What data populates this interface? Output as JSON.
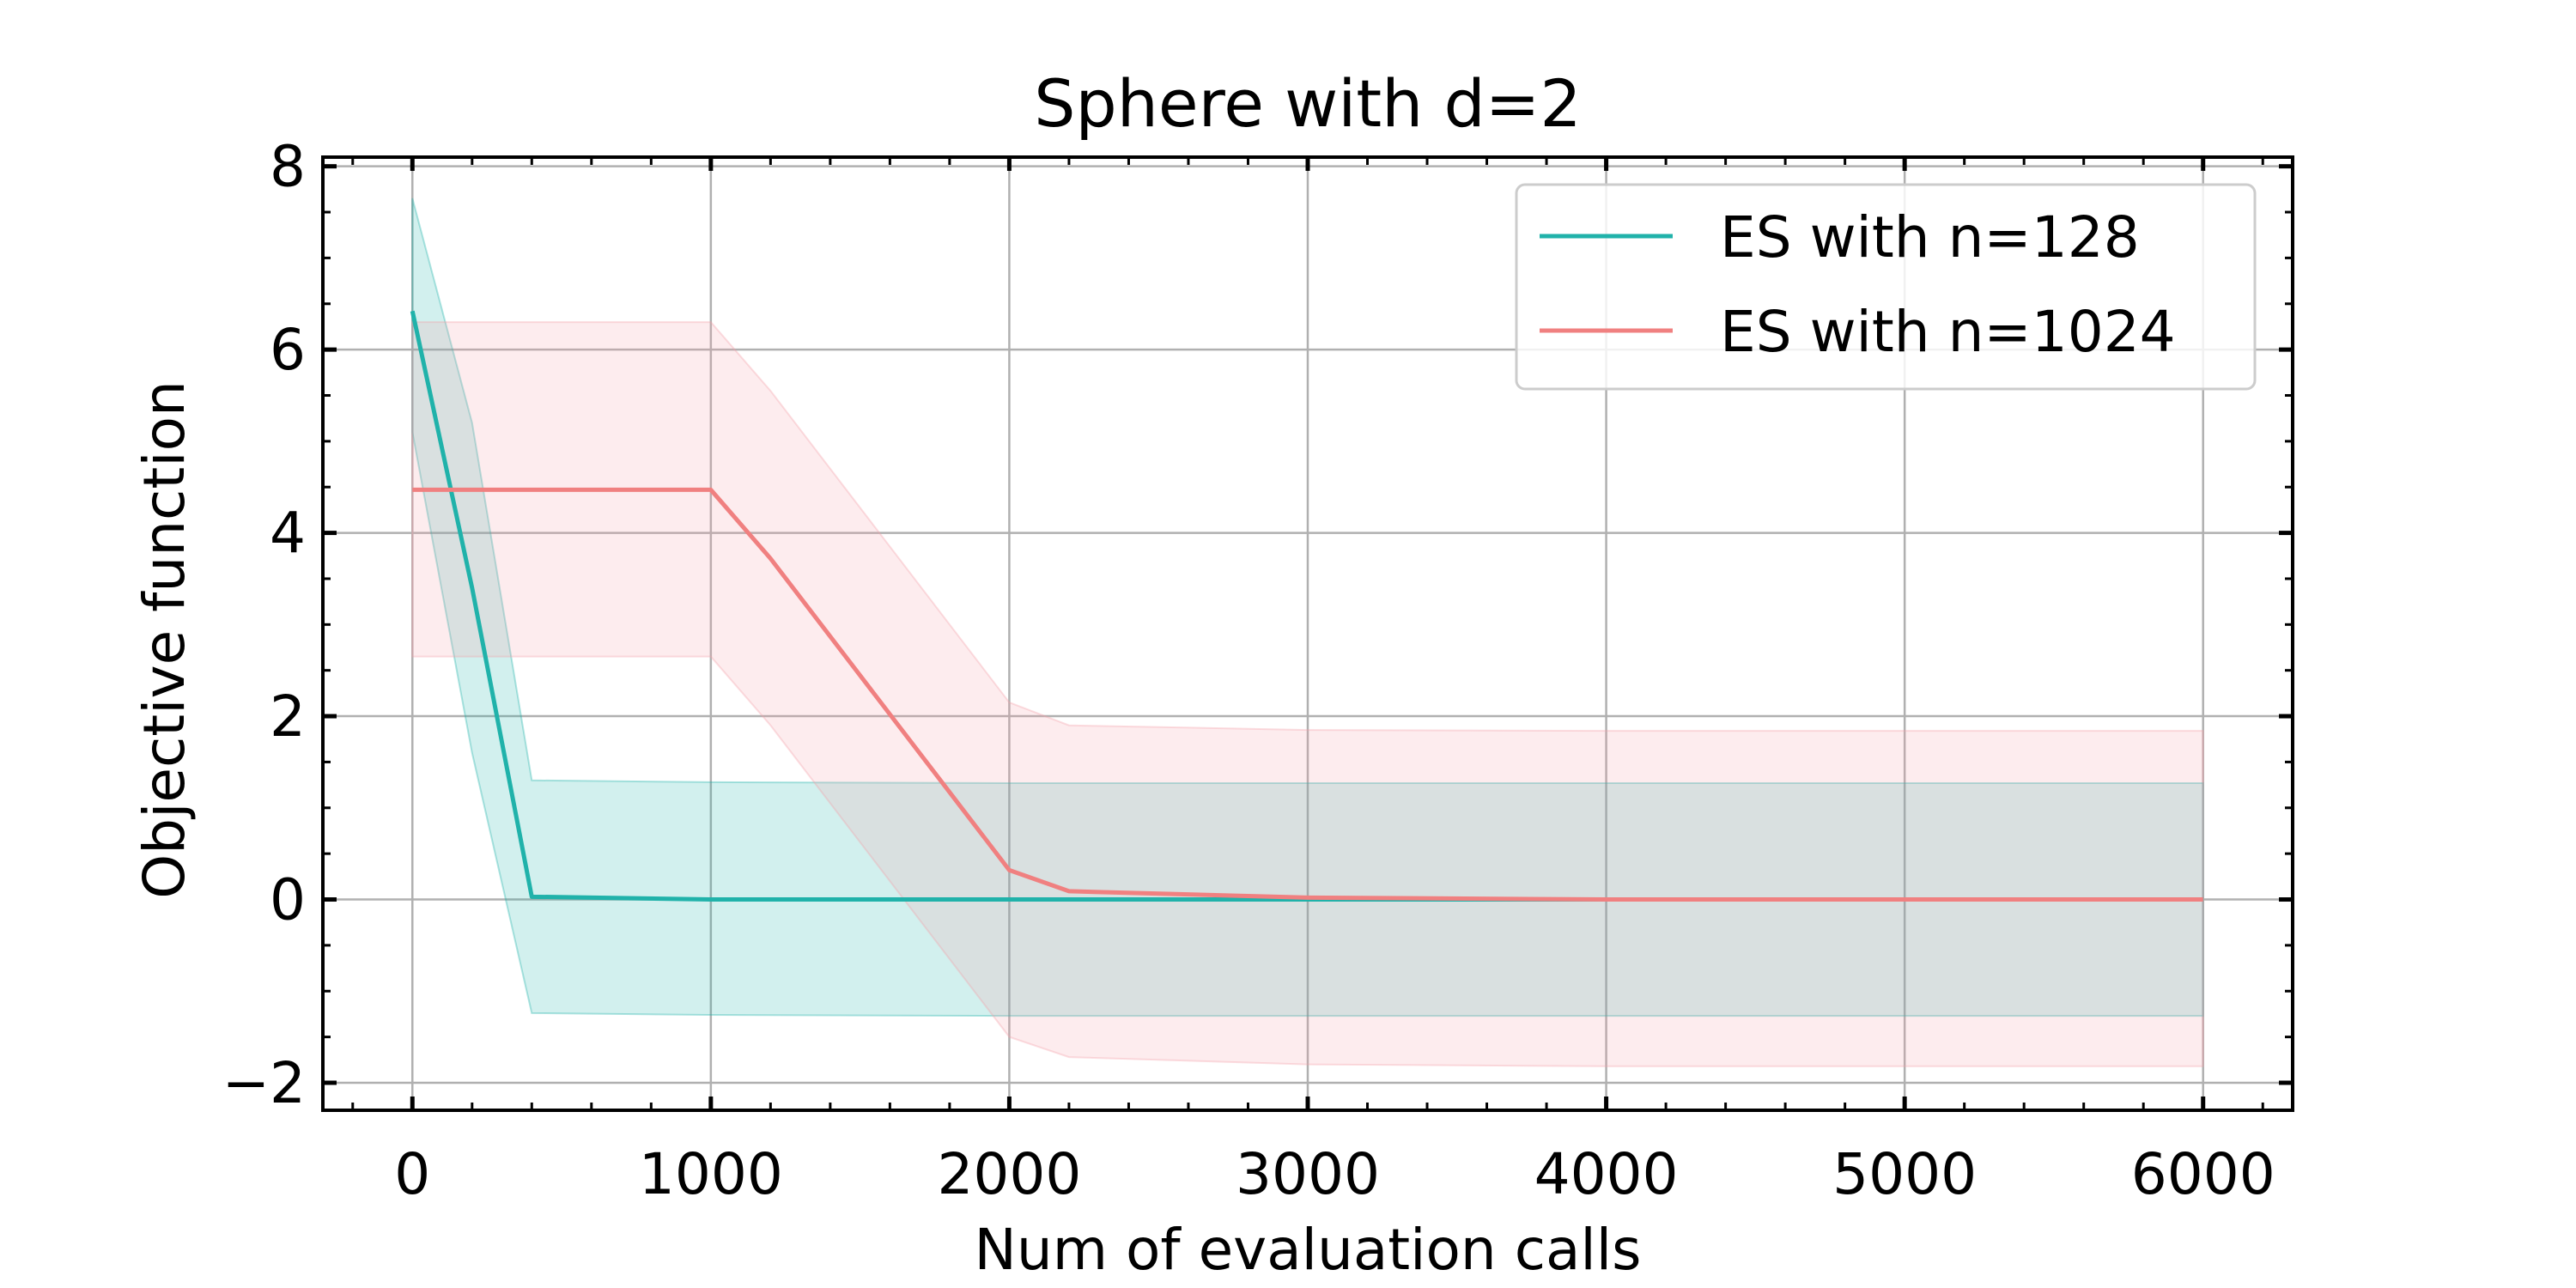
{
  "chart_data": {
    "type": "line",
    "title": "Sphere with d=2",
    "xlabel": "Num of evaluation calls",
    "ylabel": "Objective function",
    "xlim": [
      -300,
      6300
    ],
    "ylim": [
      -2.3,
      8.1
    ],
    "xticks": [
      0,
      1000,
      2000,
      3000,
      4000,
      5000,
      6000
    ],
    "xtick_labels": [
      "0",
      "1000",
      "2000",
      "3000",
      "4000",
      "5000",
      "6000"
    ],
    "yticks": [
      -2,
      0,
      2,
      4,
      6,
      8
    ],
    "ytick_labels": [
      "−2",
      "0",
      "2",
      "4",
      "6",
      "8"
    ],
    "grid": true,
    "legend": "top-right",
    "series": [
      {
        "name": "ES with n=128",
        "color": "#20b2aa",
        "band_color": "#20b2aa",
        "x": [
          0,
          200,
          400,
          1000,
          2000,
          3000,
          4000,
          5000,
          6000
        ],
        "y": [
          6.42,
          3.4,
          0.03,
          0.0,
          0.0,
          0.0,
          0.0,
          0.0,
          0.0
        ],
        "upper": [
          7.65,
          5.2,
          1.3,
          1.28,
          1.27,
          1.27,
          1.27,
          1.27,
          1.27
        ],
        "lower": [
          5.1,
          1.6,
          -1.24,
          -1.26,
          -1.27,
          -1.27,
          -1.27,
          -1.27,
          -1.27
        ]
      },
      {
        "name": "ES with n=1024",
        "color": "#f08080",
        "band_color": "#f4a0a8",
        "x": [
          0,
          1000,
          1200,
          2000,
          2200,
          3000,
          4000,
          5000,
          6000
        ],
        "y": [
          4.47,
          4.47,
          3.72,
          0.32,
          0.09,
          0.02,
          0.0,
          0.0,
          0.0
        ],
        "upper": [
          6.3,
          6.3,
          5.55,
          2.15,
          1.9,
          1.85,
          1.84,
          1.84,
          1.84
        ],
        "lower": [
          2.65,
          2.65,
          1.9,
          -1.5,
          -1.72,
          -1.8,
          -1.82,
          -1.82,
          -1.82
        ]
      }
    ]
  }
}
